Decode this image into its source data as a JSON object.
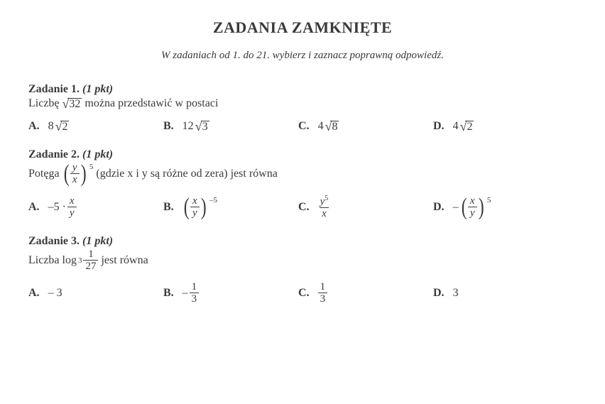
{
  "title": "ZADANIA ZAMKNIĘTE",
  "instruction": "W zadaniach od 1. do 21. wybierz i zaznacz poprawną odpowiedź.",
  "tasks": {
    "t1": {
      "head_num": "Zadanie 1.",
      "head_pts": "(1 pkt)",
      "text_pre": "Liczbę",
      "sqrt_arg": "32",
      "text_post": "można przedstawić w postaci",
      "A_coef": "8",
      "A_arg": "2",
      "B_coef": "12",
      "B_arg": "3",
      "C_coef": "4",
      "C_arg": "8",
      "D_coef": "4",
      "D_arg": "2"
    },
    "t2": {
      "head_num": "Zadanie 2.",
      "head_pts": "(1 pkt)",
      "text_pre": "Potęga",
      "frac_num": "y",
      "frac_den": "x",
      "exp": "5",
      "text_post": "(gdzie x i y są różne od zera) jest równa",
      "A_pre": "–5 ·",
      "A_num": "x",
      "A_den": "y",
      "B_num": "x",
      "B_den": "y",
      "B_exp": "–5",
      "C_num": "y",
      "C_num_exp": "5",
      "C_den": "x",
      "D_pre": "–",
      "D_num": "x",
      "D_den": "y",
      "D_exp": "5"
    },
    "t3": {
      "head_num": "Zadanie 3.",
      "head_pts": "(1 pkt)",
      "text_pre": "Liczba",
      "log_base": "3",
      "log_num": "1",
      "log_den": "27",
      "text_post": "jest równa",
      "A": "– 3",
      "B_pre": "–",
      "B_num": "1",
      "B_den": "3",
      "C_num": "1",
      "C_den": "3",
      "D": "3"
    }
  },
  "letters": {
    "A": "A.",
    "B": "B.",
    "C": "C.",
    "D": "D."
  }
}
